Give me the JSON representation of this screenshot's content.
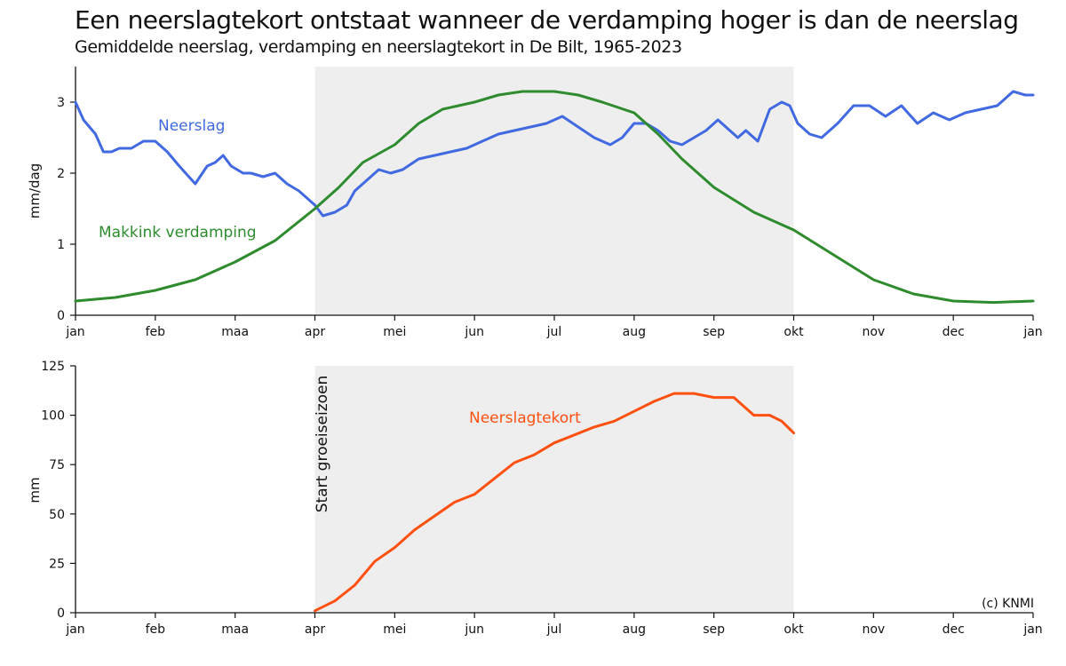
{
  "title": "Een neerslagtekort ontstaat wanneer de verdamping hoger is dan de neerslag",
  "subtitle": "Gemiddelde neerslag, verdamping en neerslagtekort in De Bilt, 1965-2023",
  "credit": "(c) KNMI",
  "colors": {
    "neerslag": "#4169e1",
    "verdamping": "#2e8b2e",
    "tekort": "#ff5010",
    "season_shade": "#eeeeee"
  },
  "chart_data": [
    {
      "type": "line",
      "x_unit": "month",
      "x_ticks": [
        "jan",
        "feb",
        "maa",
        "apr",
        "mei",
        "jun",
        "jul",
        "aug",
        "sep",
        "okt",
        "nov",
        "dec",
        "jan"
      ],
      "ylabel": "mm/dag",
      "ylim": [
        0,
        3.5
      ],
      "y_ticks": [
        "0",
        "1",
        "2",
        "3"
      ],
      "shaded_range": [
        3,
        9
      ],
      "series": [
        {
          "name": "Neerslag",
          "x": [
            0,
            0.1,
            0.25,
            0.35,
            0.45,
            0.55,
            0.7,
            0.85,
            1.0,
            1.15,
            1.3,
            1.5,
            1.65,
            1.75,
            1.85,
            1.95,
            2.1,
            2.2,
            2.35,
            2.5,
            2.65,
            2.8,
            3.0,
            3.1,
            3.25,
            3.4,
            3.5,
            3.65,
            3.8,
            3.95,
            4.1,
            4.3,
            4.5,
            4.7,
            4.9,
            5.1,
            5.3,
            5.5,
            5.7,
            5.9,
            6.1,
            6.3,
            6.5,
            6.7,
            6.85,
            7.0,
            7.15,
            7.3,
            7.45,
            7.6,
            7.75,
            7.9,
            8.05,
            8.2,
            8.3,
            8.4,
            8.55,
            8.7,
            8.85,
            8.95,
            9.05,
            9.2,
            9.35,
            9.55,
            9.75,
            9.95,
            10.15,
            10.35,
            10.55,
            10.75,
            10.95,
            11.15,
            11.35,
            11.55,
            11.75,
            11.9,
            12.0
          ],
          "values": [
            3.0,
            2.75,
            2.55,
            2.3,
            2.3,
            2.35,
            2.35,
            2.45,
            2.45,
            2.3,
            2.1,
            1.85,
            2.1,
            2.15,
            2.25,
            2.1,
            2.0,
            2.0,
            1.95,
            2.0,
            1.85,
            1.75,
            1.55,
            1.4,
            1.45,
            1.55,
            1.75,
            1.9,
            2.05,
            2.0,
            2.05,
            2.2,
            2.25,
            2.3,
            2.35,
            2.45,
            2.55,
            2.6,
            2.65,
            2.7,
            2.8,
            2.65,
            2.5,
            2.4,
            2.5,
            2.7,
            2.7,
            2.6,
            2.45,
            2.4,
            2.5,
            2.6,
            2.75,
            2.6,
            2.5,
            2.6,
            2.45,
            2.9,
            3.0,
            2.95,
            2.7,
            2.55,
            2.5,
            2.7,
            2.95,
            2.95,
            2.8,
            2.95,
            2.7,
            2.85,
            2.75,
            2.85,
            2.9,
            2.95,
            3.15,
            3.1,
            3.1
          ]
        },
        {
          "name": "Makkink verdamping",
          "x": [
            0,
            0.5,
            1.0,
            1.5,
            2.0,
            2.5,
            3.0,
            3.3,
            3.6,
            4.0,
            4.3,
            4.6,
            5.0,
            5.3,
            5.6,
            6.0,
            6.3,
            6.6,
            7.0,
            7.3,
            7.6,
            8.0,
            8.5,
            9.0,
            9.5,
            10.0,
            10.5,
            11.0,
            11.5,
            12.0
          ],
          "values": [
            0.2,
            0.25,
            0.35,
            0.5,
            0.75,
            1.05,
            1.5,
            1.8,
            2.15,
            2.4,
            2.7,
            2.9,
            3.0,
            3.1,
            3.15,
            3.15,
            3.1,
            3.0,
            2.85,
            2.55,
            2.2,
            1.8,
            1.45,
            1.2,
            0.85,
            0.5,
            0.3,
            0.2,
            0.18,
            0.2
          ]
        }
      ]
    },
    {
      "type": "line",
      "x_unit": "month",
      "x_ticks": [
        "jan",
        "feb",
        "maa",
        "apr",
        "mei",
        "jun",
        "jul",
        "aug",
        "sep",
        "okt",
        "nov",
        "dec",
        "jan"
      ],
      "ylabel": "mm",
      "ylim": [
        0,
        125
      ],
      "y_ticks": [
        "0",
        "25",
        "50",
        "75",
        "100",
        "125"
      ],
      "shaded_range": [
        3,
        9
      ],
      "annotation": "Start groeiseizoen",
      "series": [
        {
          "name": "Neerslagtekort",
          "x": [
            3.0,
            3.25,
            3.5,
            3.75,
            4.0,
            4.25,
            4.5,
            4.75,
            5.0,
            5.25,
            5.5,
            5.75,
            6.0,
            6.25,
            6.5,
            6.75,
            7.0,
            7.25,
            7.5,
            7.75,
            8.0,
            8.25,
            8.5,
            8.7,
            8.85,
            9.0
          ],
          "values": [
            1,
            6,
            14,
            26,
            33,
            42,
            49,
            56,
            60,
            68,
            76,
            80,
            86,
            90,
            94,
            97,
            102,
            107,
            111,
            111,
            109,
            109,
            100,
            100,
            97,
            91
          ]
        }
      ]
    }
  ]
}
